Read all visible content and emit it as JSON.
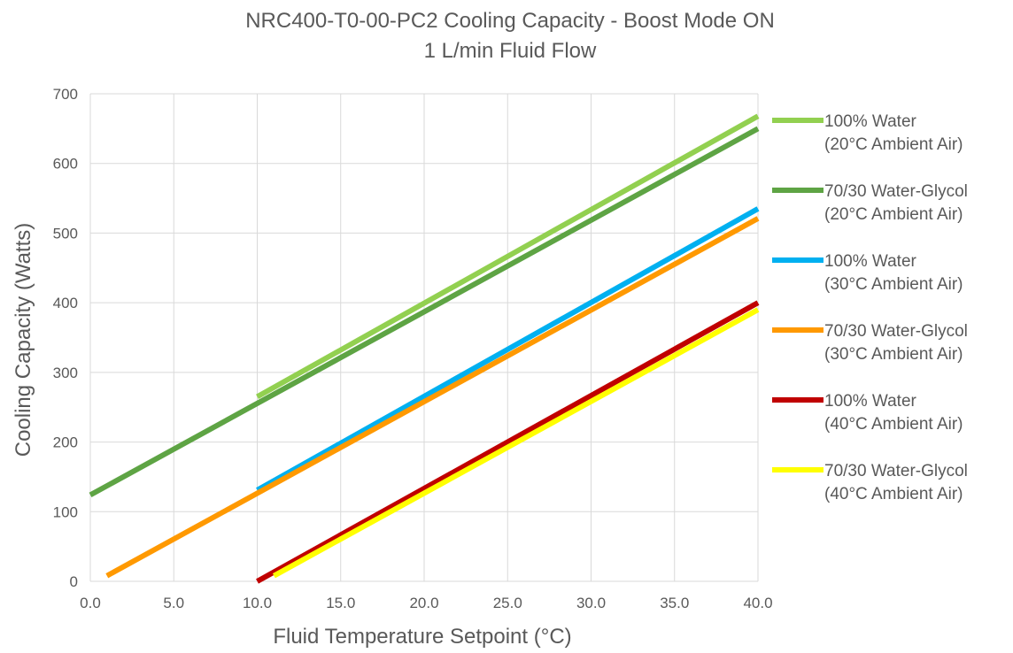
{
  "chart_data": {
    "type": "line",
    "title": "NRC400-T0-00-PC2 Cooling Capacity - Boost Mode ON",
    "subtitle": "1 L/min Fluid Flow",
    "xlabel": "Fluid Temperature Setpoint (°C)",
    "ylabel": "Cooling Capacity (Watts)",
    "xlim": [
      0,
      40
    ],
    "ylim": [
      0,
      700
    ],
    "x_ticks": [
      "0.0",
      "5.0",
      "10.0",
      "15.0",
      "20.0",
      "25.0",
      "30.0",
      "35.0",
      "40.0"
    ],
    "y_ticks": [
      "0",
      "100",
      "200",
      "300",
      "400",
      "500",
      "600",
      "700"
    ],
    "grid": true,
    "legend_position": "right",
    "series": [
      {
        "name": "100% Water",
        "name_line2": "(20°C Ambient Air)",
        "color": "#92d050",
        "points": [
          [
            10,
            265
          ],
          [
            40,
            668
          ]
        ]
      },
      {
        "name": "70/30 Water-Glycol",
        "name_line2": "(20°C Ambient Air)",
        "color": "#5ea444",
        "points": [
          [
            0,
            124
          ],
          [
            40,
            650
          ]
        ]
      },
      {
        "name": "100% Water",
        "name_line2": "(30°C Ambient Air)",
        "color": "#00b0f0",
        "points": [
          [
            10,
            131
          ],
          [
            40,
            535
          ]
        ]
      },
      {
        "name": "70/30 Water-Glycol",
        "name_line2": "(30°C Ambient Air)",
        "color": "#ff9900",
        "points": [
          [
            1,
            8
          ],
          [
            40,
            521
          ]
        ]
      },
      {
        "name": "100% Water",
        "name_line2": "(40°C Ambient Air)",
        "color": "#c00000",
        "points": [
          [
            10,
            0
          ],
          [
            40,
            400
          ]
        ]
      },
      {
        "name": "70/30 Water-Glycol",
        "name_line2": "(40°C Ambient Air)",
        "color": "#ffff00",
        "points": [
          [
            11,
            8
          ],
          [
            40,
            390
          ]
        ]
      }
    ]
  }
}
